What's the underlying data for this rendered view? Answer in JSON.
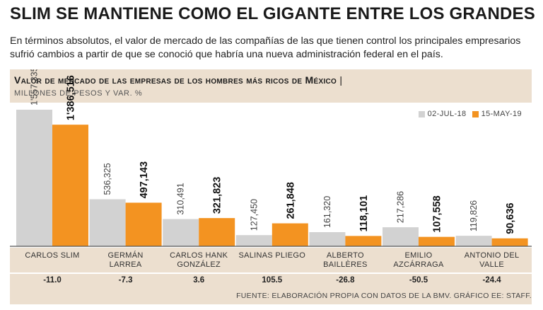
{
  "headline": "SLIM SE MANTIENE COMO EL GIGANTE ENTRE LOS GRANDES",
  "deck": "En términos absolutos, el valor de mercado de las compañías de las que tienen control los principales empresarios sufrió cambios a partir de que se conoció que habría una nueva administración federal en el país.",
  "source": "FUENTE: ELABORACIÓN PROPIA CON DATOS DE LA BMV. GRÁFICO EE: STAFF.",
  "colors": {
    "series_2018": "#d2d2d2",
    "series_2019": "#f39321",
    "band": "#ecdfcf"
  },
  "chart_data": {
    "type": "bar",
    "title": "Valor de mercado de las empresas de los hombres más ricos de México",
    "title_suffix": "|",
    "subtitle": "MILLONES DE PESOS Y VAR. %",
    "categories": [
      [
        "CARLOS SLIM"
      ],
      [
        "GERMÁN",
        "LARREA"
      ],
      [
        "CARLOS HANK",
        "GONZÁLEZ"
      ],
      [
        "SALINAS PLIEGO"
      ],
      [
        "ALBERTO",
        "BAILLÈRES"
      ],
      [
        "EMILIO",
        "AZCÁRRAGA"
      ],
      [
        "ANTONIO DEL",
        "VALLE"
      ]
    ],
    "series": [
      {
        "name": "02-JUL-18",
        "values": [
          1557335,
          536325,
          310491,
          127450,
          161320,
          217286,
          119826
        ],
        "labels": [
          "1'557,335",
          "536,325",
          "310,491",
          "127,450",
          "161,320",
          "217,286",
          "119,826"
        ]
      },
      {
        "name": "15-MAY-19",
        "values": [
          1386516,
          497143,
          321823,
          261848,
          118101,
          107558,
          90636
        ],
        "labels": [
          "1'386,516",
          "497,143",
          "321,823",
          "261,848",
          "118,101",
          "107,558",
          "90,636"
        ]
      }
    ],
    "variation_pct": [
      "-11.0",
      "-7.3",
      "3.6",
      "105.5",
      "-26.8",
      "-50.5",
      "-24.4"
    ],
    "ylim": [
      0,
      1557335
    ],
    "legend": "top-right",
    "grid": false
  }
}
